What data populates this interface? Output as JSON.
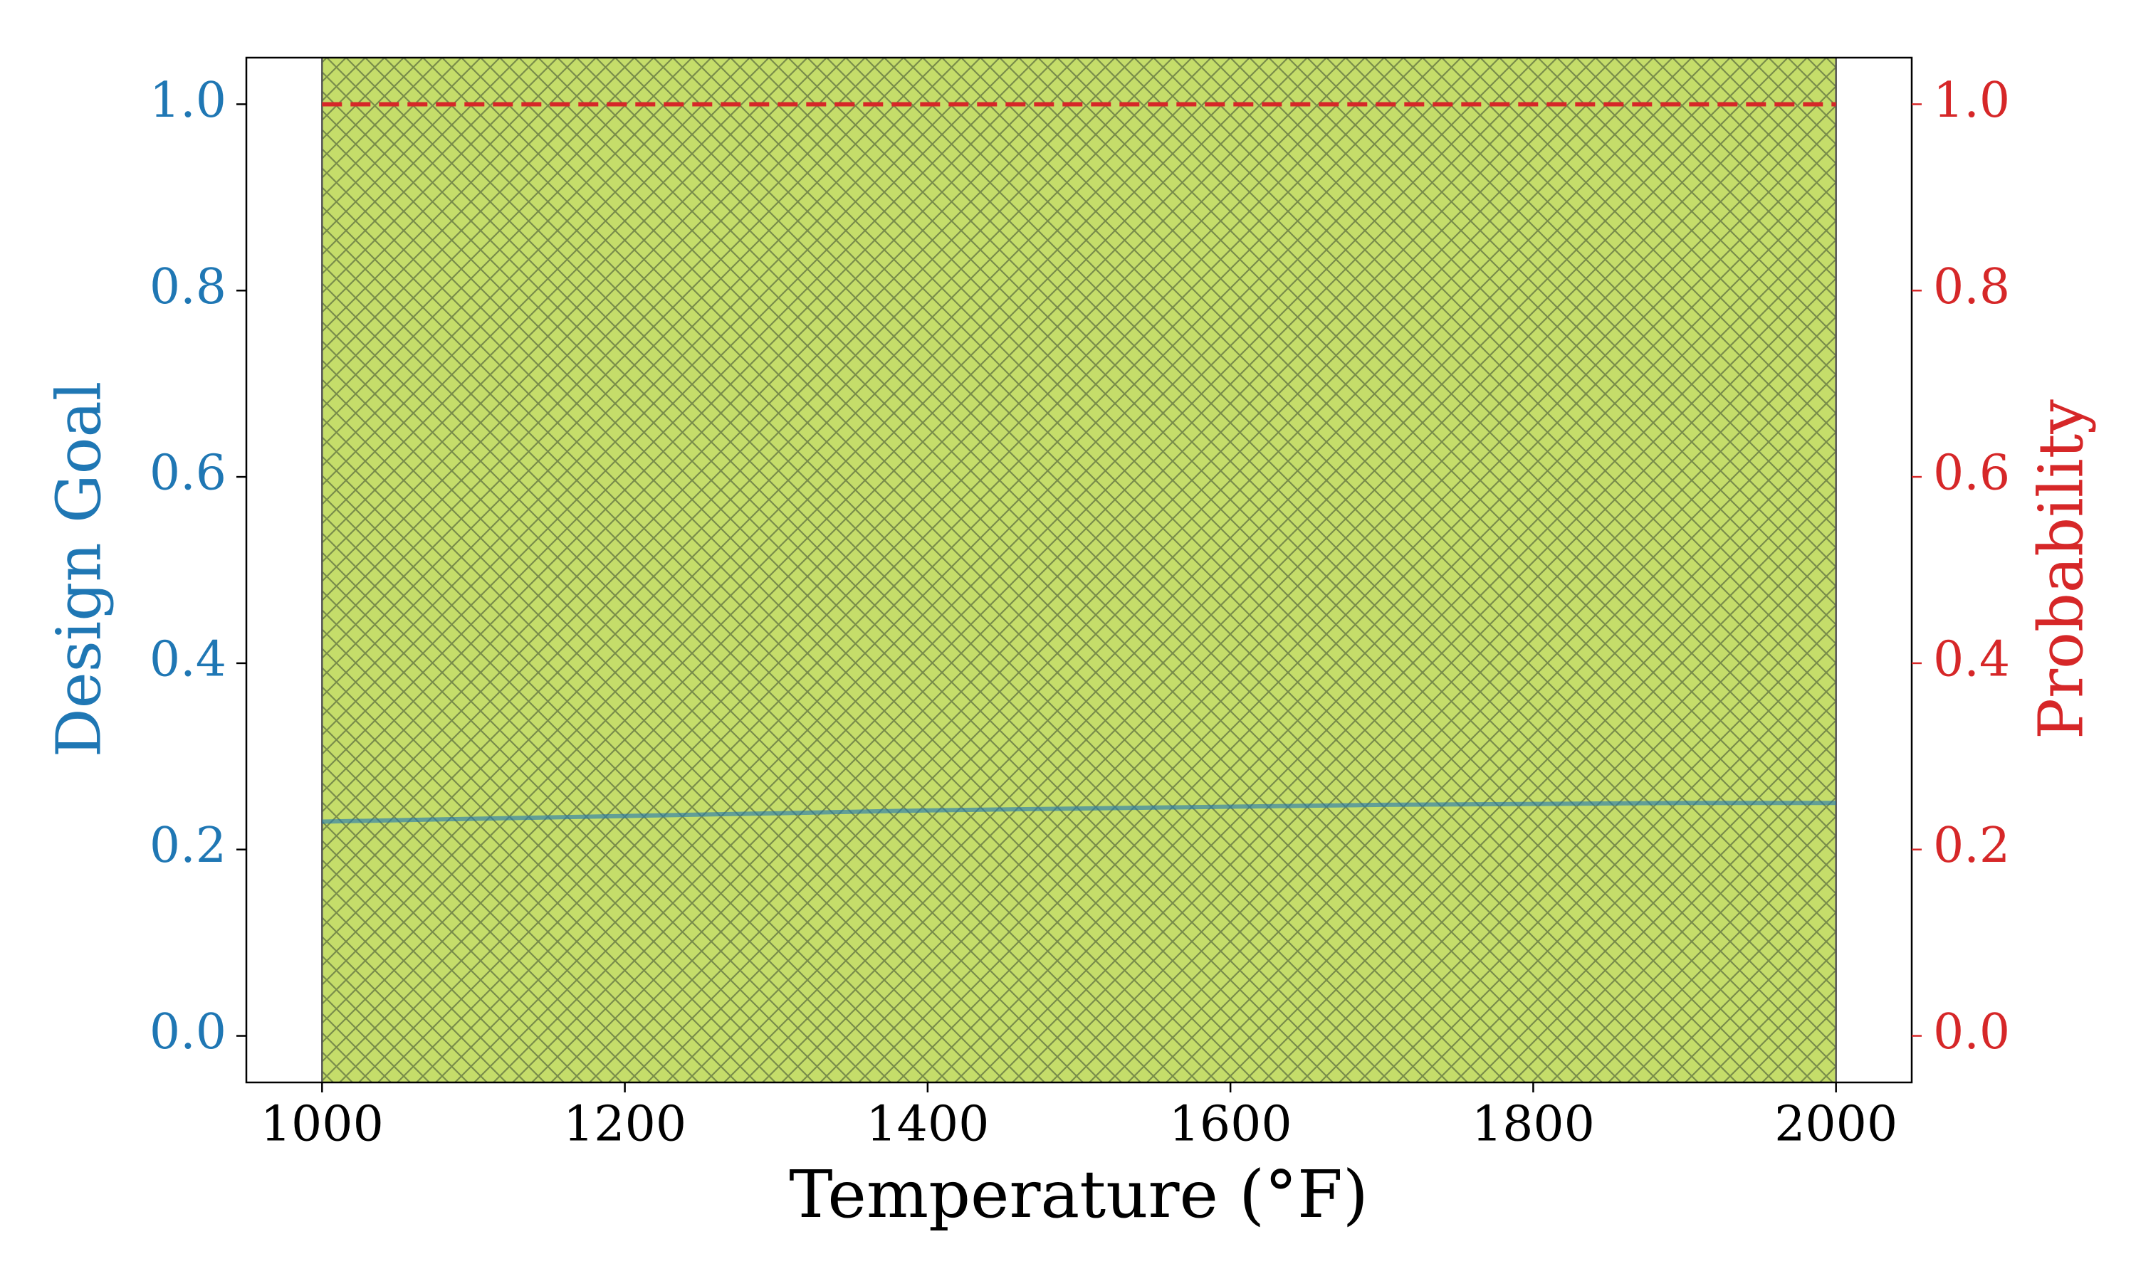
{
  "chart_data": {
    "type": "line",
    "x_label": "Temperature (°F)",
    "y_label": "Design Goal",
    "y2_label": "Probability",
    "x": [
      1000,
      1100,
      1200,
      1300,
      1400,
      1500,
      1600,
      1700,
      1800,
      1900,
      2000
    ],
    "series": [
      {
        "color": "#1f77b4",
        "axis": "y",
        "values": [
          0.23,
          0.233,
          0.236,
          0.239,
          0.242,
          0.244,
          0.246,
          0.248,
          0.249,
          0.25,
          0.25
        ]
      },
      {
        "color": "#d62728",
        "axis": "y2",
        "dashed": true,
        "values": [
          1.0,
          1.0,
          1.0,
          1.0,
          1.0,
          1.0,
          1.0,
          1.0,
          1.0,
          1.0,
          1.0
        ]
      }
    ],
    "span": {
      "x": [
        1000,
        2000
      ],
      "color": "#c5dd6a",
      "hatch": "crosshatch"
    },
    "xlim": [
      950,
      2050
    ],
    "xticks": [
      1000,
      1200,
      1400,
      1600,
      1800,
      2000
    ],
    "ylim": [
      -0.05,
      1.05
    ],
    "yticks": [
      {
        "value": 0,
        "label": "0.0"
      },
      0.2,
      0.4,
      0.6,
      0.8,
      {
        "value": 1,
        "label": "1.0"
      }
    ],
    "y_color": "#1f77b4",
    "y2lim": [
      -0.05,
      1.05
    ],
    "y2ticks": [
      {
        "value": 0,
        "label": "0.0"
      },
      0.2,
      0.4,
      0.6,
      0.8,
      {
        "value": 1,
        "label": "1.0"
      }
    ],
    "y2_color": "#d62728"
  }
}
